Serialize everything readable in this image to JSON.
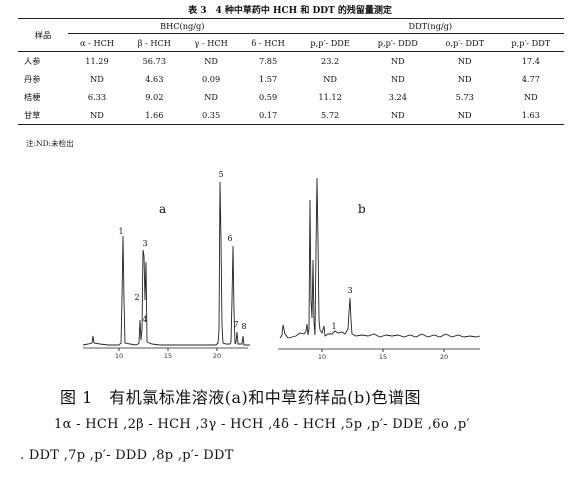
{
  "table": {
    "title": "表 3　4 种中草药中 HCH 和 DDT 的残留量测定",
    "sample_header": "样品",
    "bhc_group": "BHC(ng/g)",
    "ddt_group": "DDT(ng/g)",
    "columns": [
      "α - HCH",
      "β - HCH",
      "γ - HCH",
      "δ - HCH",
      "p,p′- DDE",
      "p,p′- DDD",
      "o,p′- DDT",
      "p,p′- DDT"
    ],
    "rows": [
      {
        "name": "人参",
        "values": [
          "11.29",
          "56.73",
          "ND",
          "7.85",
          "23.2",
          "ND",
          "ND",
          "17.4"
        ]
      },
      {
        "name": "丹参",
        "values": [
          "ND",
          "4.63",
          "0.09",
          "1.57",
          "ND",
          "ND",
          "ND",
          "4.77"
        ]
      },
      {
        "name": "桔梗",
        "values": [
          "6.33",
          "9.02",
          "ND",
          "0.59",
          "11.12",
          "3.24",
          "5.73",
          "ND"
        ]
      },
      {
        "name": "甘草",
        "values": [
          "ND",
          "1.66",
          "0.35",
          "0.17",
          "5.72",
          "ND",
          "ND",
          "1.63"
        ]
      }
    ],
    "note": "注:ND:未检出"
  },
  "chromatogram": {
    "panel_a_label": "a",
    "panel_b_label": "b",
    "peaks_a": [
      "1",
      "2",
      "3",
      "4",
      "5",
      "6",
      "7",
      "8"
    ],
    "peaks_b": [
      "1",
      "3"
    ],
    "axis_a_ticks": [
      "10",
      "15",
      "20"
    ],
    "axis_b_ticks": [
      "10",
      "15",
      "20"
    ]
  },
  "figure": {
    "title": "图 1　有机氯标准溶液(a)和中草药样品(b)色谱图",
    "legend_line1": "1α - HCH ,2β - HCH ,3γ - HCH ,4δ - HCH ,5p ,p′- DDE ,6o ,p′",
    "legend_line2": ". DDT ,7p ,p′- DDD ,8p ,p′- DDT"
  }
}
